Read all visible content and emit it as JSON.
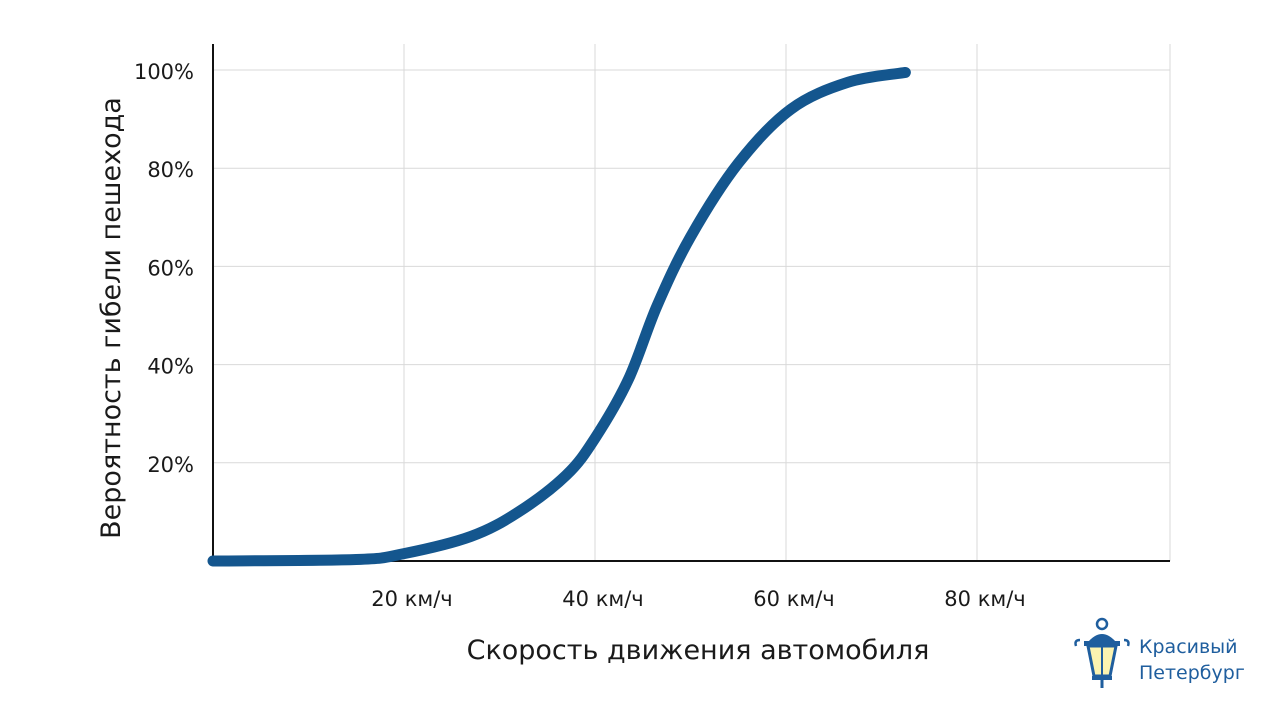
{
  "chart_data": {
    "type": "line",
    "title": "",
    "xlabel": "Скорость движения автомобиля",
    "ylabel": "Вероятность гибели пешехода",
    "xlim": [
      0,
      100
    ],
    "ylim": [
      0,
      100
    ],
    "grid": true,
    "x_ticks": [
      {
        "value": 20,
        "label": "20 км/ч"
      },
      {
        "value": 40,
        "label": "40 км/ч"
      },
      {
        "value": 60,
        "label": "60 км/ч"
      },
      {
        "value": 80,
        "label": "80 км/ч"
      }
    ],
    "y_ticks": [
      {
        "value": 20,
        "label": "20%"
      },
      {
        "value": 40,
        "label": "40%"
      },
      {
        "value": 60,
        "label": "60%"
      },
      {
        "value": 80,
        "label": "80%"
      },
      {
        "value": 100,
        "label": "100%"
      }
    ],
    "series": [
      {
        "name": "Вероятность гибели пешехода",
        "color": "#14568e",
        "x": [
          0,
          15,
          20,
          27,
          32,
          37,
          40,
          43.5,
          46.5,
          50,
          55,
          60.5,
          66.5,
          72.5
        ],
        "y": [
          0,
          0.3,
          1.5,
          5,
          10,
          17.5,
          25,
          37,
          52,
          66,
          81,
          92,
          97.5,
          99.5
        ]
      }
    ]
  },
  "logo": {
    "line1": "Красивый",
    "line2": "Петербург",
    "color": "#1f5e9e"
  }
}
